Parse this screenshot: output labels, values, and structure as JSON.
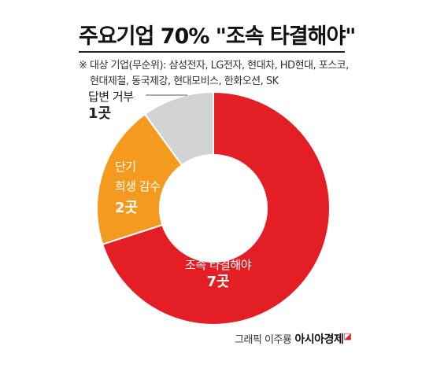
{
  "title": "주요기업 70% \"조속 타결해야\"",
  "note_line1": "※ 대상 기업(무순위): 삼성전자, LG전자, 현대차, HD현대, 포스코,",
  "note_line2": "현대제철, 동국제강, 현대모비스, 한화오션, SK",
  "credit": "그래픽 이주룡",
  "credit_brand": "아시아경제",
  "credit_mark": "◪",
  "chart_data": {
    "type": "pie",
    "style": "donut",
    "unit": "곳",
    "slices": [
      {
        "label": "조속 타결해야",
        "value": 7,
        "value_label": "7곳",
        "color": "#e31e24"
      },
      {
        "label": "단기 희생 감수",
        "value": 2,
        "value_label": "2곳",
        "color": "#f39a1f"
      },
      {
        "label": "답변 거부",
        "value": 1,
        "value_label": "1곳",
        "color": "#d2d3d5"
      }
    ]
  }
}
